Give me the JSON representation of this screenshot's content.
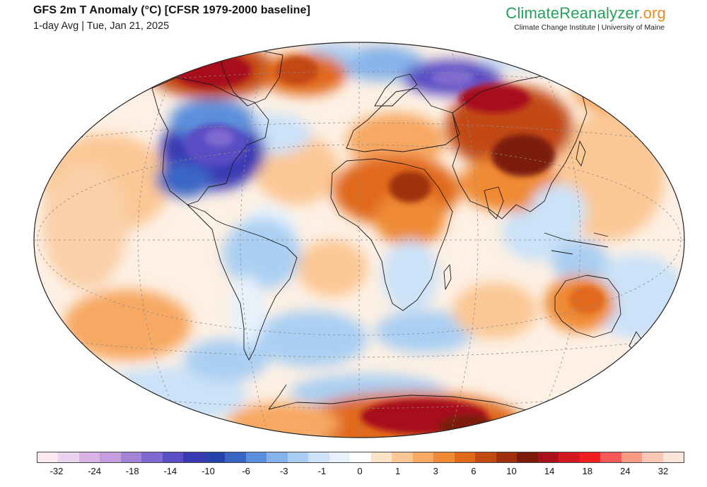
{
  "header": {
    "title": "GFS 2m T Anomaly (°C) [CFSR 1979-2000 baseline]",
    "subtitle": "1-day Avg | Tue, Jan 21, 2025"
  },
  "brand": {
    "name_part1": "ClimateReanalyzer",
    "name_part2": ".org",
    "tagline": "Climate Change Institute | University of Maine"
  },
  "colors": {
    "background_neutral": "#fdf0e4",
    "land_outline": "#1a1a1a",
    "graticule": "#8a8a8a"
  },
  "legend": {
    "swatches": [
      "#fde8ef",
      "#ead3ee",
      "#d8b4e6",
      "#c39ddd",
      "#a383d4",
      "#7f6bd0",
      "#5a4ec4",
      "#3a3ab4",
      "#2742a8",
      "#3a66c6",
      "#5a8fdc",
      "#86b4ea",
      "#aacff2",
      "#cbe2f8",
      "#e6f1fb",
      "#ffffff",
      "#fde2c6",
      "#fbc794",
      "#f7a862",
      "#ef8a36",
      "#e0691c",
      "#c24a12",
      "#9e300c",
      "#7c1a0a",
      "#a8101c",
      "#d21820",
      "#f02020",
      "#f85a5a",
      "#f99a86",
      "#fcc7b6",
      "#fde5dc"
    ],
    "labels": [
      "-32",
      "-24",
      "-18",
      "-14",
      "-10",
      "-6",
      "-3",
      "-1",
      "0",
      "1",
      "3",
      "6",
      "10",
      "14",
      "18",
      "24",
      "32"
    ]
  }
}
